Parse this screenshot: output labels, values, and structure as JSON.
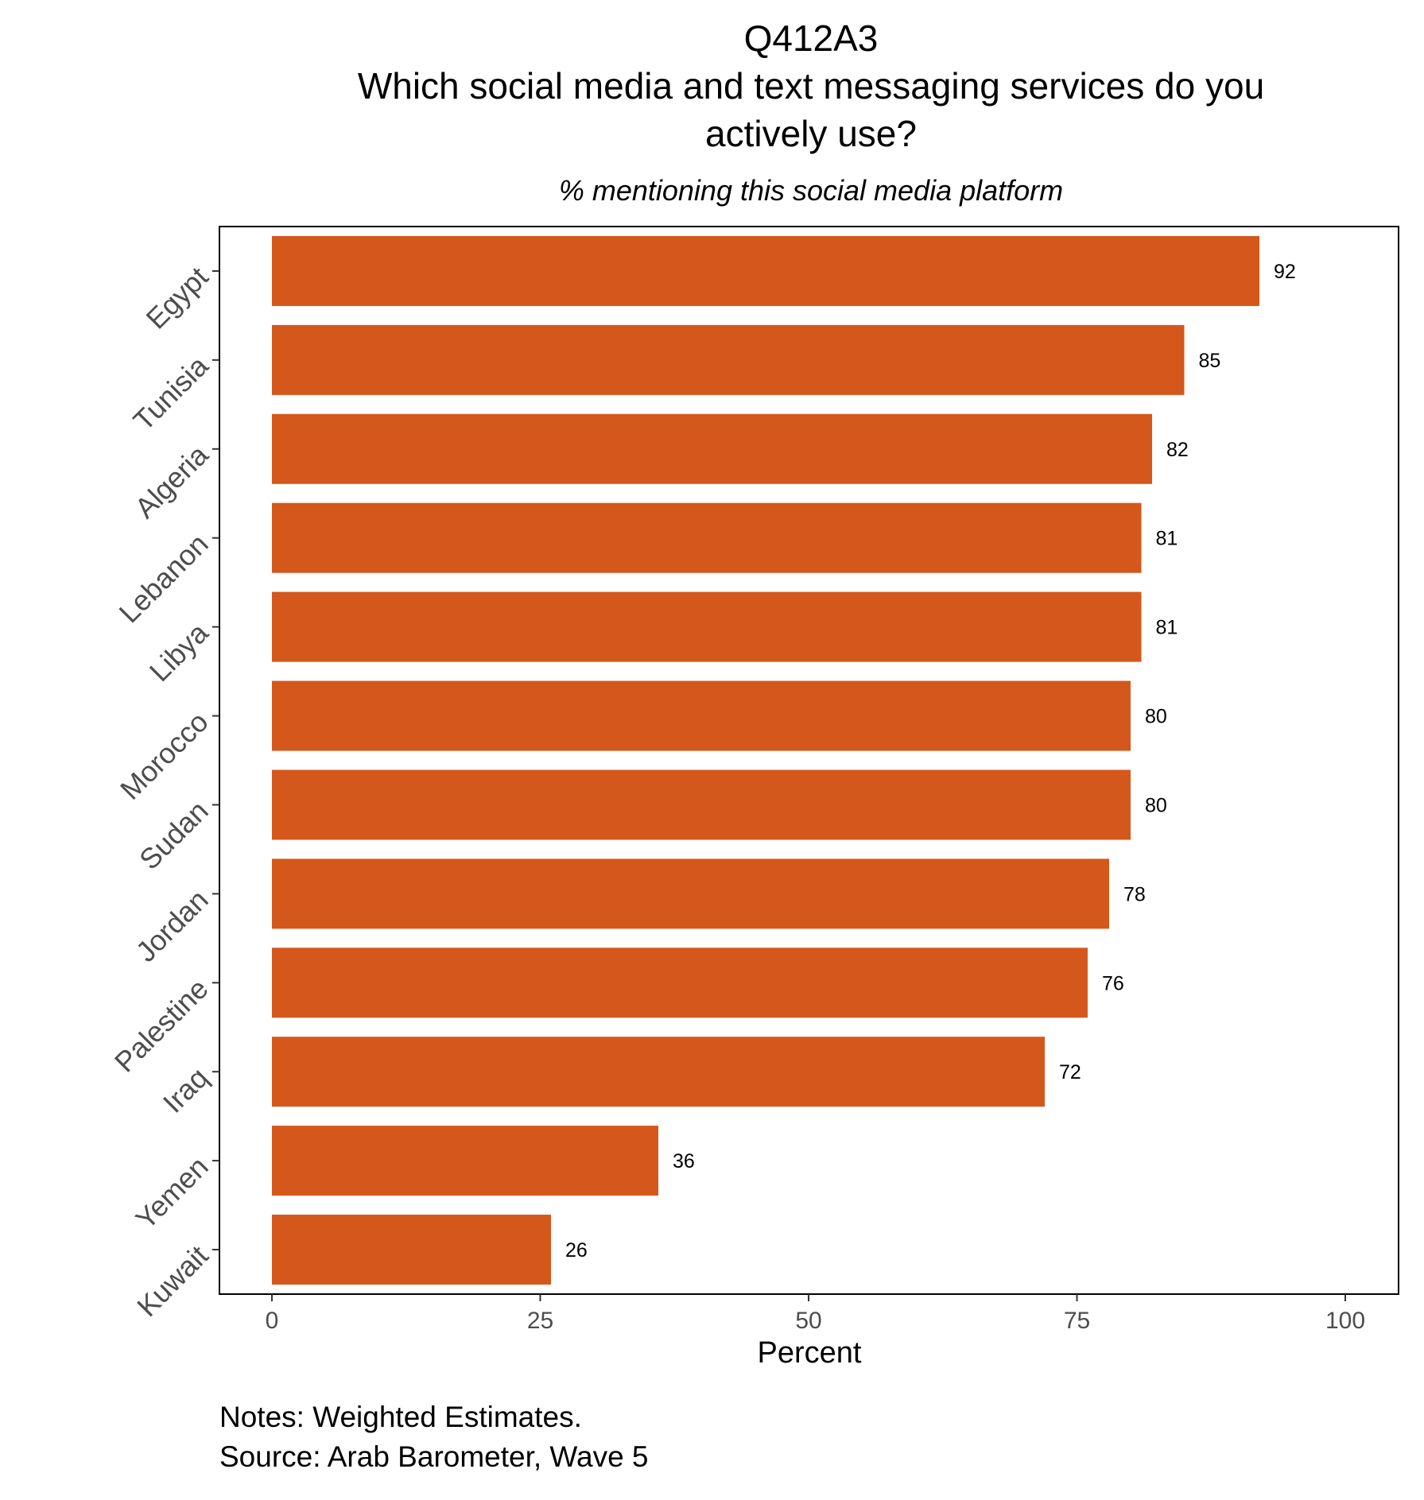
{
  "chart_data": {
    "type": "bar",
    "orientation": "horizontal",
    "title_lines": [
      "Q412A3",
      "Which social media and text messaging services do you",
      "actively use?"
    ],
    "subtitle": "% mentioning this social media platform",
    "categories": [
      "Egypt",
      "Tunisia",
      "Algeria",
      "Lebanon",
      "Libya",
      "Morocco",
      "Sudan",
      "Jordan",
      "Palestine",
      "Iraq",
      "Yemen",
      "Kuwait"
    ],
    "values": [
      92,
      85,
      82,
      81,
      81,
      80,
      80,
      78,
      76,
      72,
      36,
      26
    ],
    "value_labels": [
      "92",
      "85",
      "82",
      "81",
      "81",
      "80",
      "80",
      "78",
      "76",
      "72",
      "36",
      "26"
    ],
    "xlabel": "Percent",
    "ylabel": "",
    "xlim": [
      0,
      100
    ],
    "xticks": [
      0,
      25,
      50,
      75,
      100
    ],
    "xtick_labels": [
      "0",
      "25",
      "50",
      "75",
      "100"
    ],
    "bar_color": "#d4581b",
    "grid": false,
    "legend": "none",
    "caption_lines": [
      "Notes: Weighted Estimates.",
      "Source: Arab Barometer, Wave 5"
    ]
  }
}
